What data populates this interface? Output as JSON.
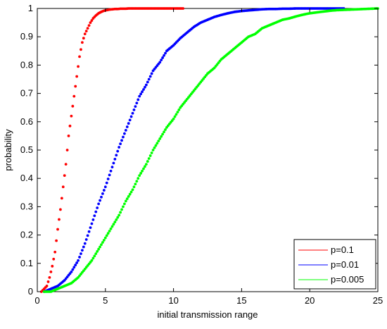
{
  "chart_data": {
    "type": "scatter",
    "title": "",
    "xlabel": "initial transmission range",
    "ylabel": "probability",
    "xlim": [
      0,
      25
    ],
    "ylim": [
      0,
      1
    ],
    "xticks": [
      "0",
      "5",
      "10",
      "15",
      "20",
      "25"
    ],
    "yticks": [
      "0",
      "0.1",
      "0.2",
      "0.3",
      "0.4",
      "0.5",
      "0.6",
      "0.7",
      "0.8",
      "0.9",
      "1"
    ],
    "grid": false,
    "legend_position": "bottom-right",
    "series": [
      {
        "name": "p=0.1",
        "color": "#ff0000",
        "x": [
          0.3,
          0.5,
          0.7,
          0.9,
          1.1,
          1.3,
          1.5,
          1.7,
          1.9,
          2.1,
          2.3,
          2.5,
          2.7,
          2.9,
          3.1,
          3.3,
          3.5,
          3.7,
          3.9,
          4.1,
          4.3,
          4.5,
          4.7,
          4.9,
          5.1,
          5.3,
          5.5,
          5.7,
          5.9,
          6.1,
          6.3,
          6.5,
          6.7,
          6.9,
          7.1,
          7.3,
          7.5,
          7.7,
          7.9,
          8.1,
          8.3,
          8.5,
          8.7,
          8.9,
          9.1,
          9.3,
          9.5,
          9.7,
          9.9,
          10.1,
          10.3,
          10.5,
          10.7
        ],
        "y": [
          0.0,
          0.01,
          0.02,
          0.05,
          0.09,
          0.14,
          0.22,
          0.29,
          0.37,
          0.45,
          0.55,
          0.62,
          0.69,
          0.76,
          0.83,
          0.88,
          0.91,
          0.93,
          0.95,
          0.965,
          0.975,
          0.983,
          0.988,
          0.992,
          0.994,
          0.996,
          0.997,
          0.998,
          0.998,
          0.999,
          0.999,
          0.999,
          1.0,
          1.0,
          1.0,
          1.0,
          1.0,
          1.0,
          1.0,
          1.0,
          1.0,
          1.0,
          1.0,
          1.0,
          1.0,
          1.0,
          1.0,
          1.0,
          1.0,
          1.0,
          1.0,
          1.0,
          1.0
        ]
      },
      {
        "name": "p=0.01",
        "color": "#0000ff",
        "x": [
          0.5,
          1.0,
          1.5,
          2.0,
          2.5,
          3.0,
          3.5,
          4.0,
          4.5,
          5.0,
          5.5,
          6.0,
          6.5,
          7.0,
          7.5,
          8.0,
          8.5,
          9.0,
          9.5,
          10.0,
          10.5,
          11.0,
          11.5,
          12.0,
          12.5,
          13.0,
          13.5,
          14.0,
          14.5,
          15.0,
          15.5,
          16.0,
          16.5,
          17.0,
          17.5,
          18.0,
          18.5,
          19.0,
          19.5,
          20.0,
          20.5,
          21.0,
          21.5,
          22.0,
          22.5
        ],
        "y": [
          0.0,
          0.01,
          0.02,
          0.04,
          0.07,
          0.11,
          0.17,
          0.24,
          0.31,
          0.37,
          0.44,
          0.51,
          0.57,
          0.63,
          0.69,
          0.73,
          0.78,
          0.81,
          0.85,
          0.87,
          0.895,
          0.915,
          0.935,
          0.95,
          0.96,
          0.97,
          0.977,
          0.983,
          0.988,
          0.991,
          0.993,
          0.995,
          0.997,
          0.998,
          0.998,
          0.999,
          0.999,
          1.0,
          1.0,
          1.0,
          1.0,
          1.0,
          1.0,
          1.0,
          1.0
        ]
      },
      {
        "name": "p=0.005",
        "color": "#00ff00",
        "x": [
          0.5,
          1.0,
          1.5,
          2.0,
          2.5,
          3.0,
          3.5,
          4.0,
          4.5,
          5.0,
          5.5,
          6.0,
          6.5,
          7.0,
          7.5,
          8.0,
          8.5,
          9.0,
          9.5,
          10.0,
          10.5,
          11.0,
          11.5,
          12.0,
          12.5,
          13.0,
          13.5,
          14.0,
          14.5,
          15.0,
          15.5,
          16.0,
          16.5,
          17.0,
          17.5,
          18.0,
          18.5,
          19.0,
          19.5,
          20.0,
          20.5,
          21.0,
          21.5,
          22.0,
          22.5,
          23.0,
          23.5,
          24.0,
          24.5,
          25.0
        ],
        "y": [
          0.0,
          0.0,
          0.01,
          0.02,
          0.03,
          0.05,
          0.08,
          0.11,
          0.15,
          0.19,
          0.23,
          0.27,
          0.32,
          0.36,
          0.41,
          0.45,
          0.5,
          0.54,
          0.58,
          0.61,
          0.65,
          0.68,
          0.71,
          0.74,
          0.77,
          0.79,
          0.82,
          0.84,
          0.86,
          0.88,
          0.9,
          0.91,
          0.93,
          0.94,
          0.95,
          0.96,
          0.965,
          0.972,
          0.978,
          0.983,
          0.986,
          0.989,
          0.992,
          0.994,
          0.995,
          0.996,
          0.997,
          0.998,
          0.999,
          1.0
        ]
      }
    ]
  }
}
